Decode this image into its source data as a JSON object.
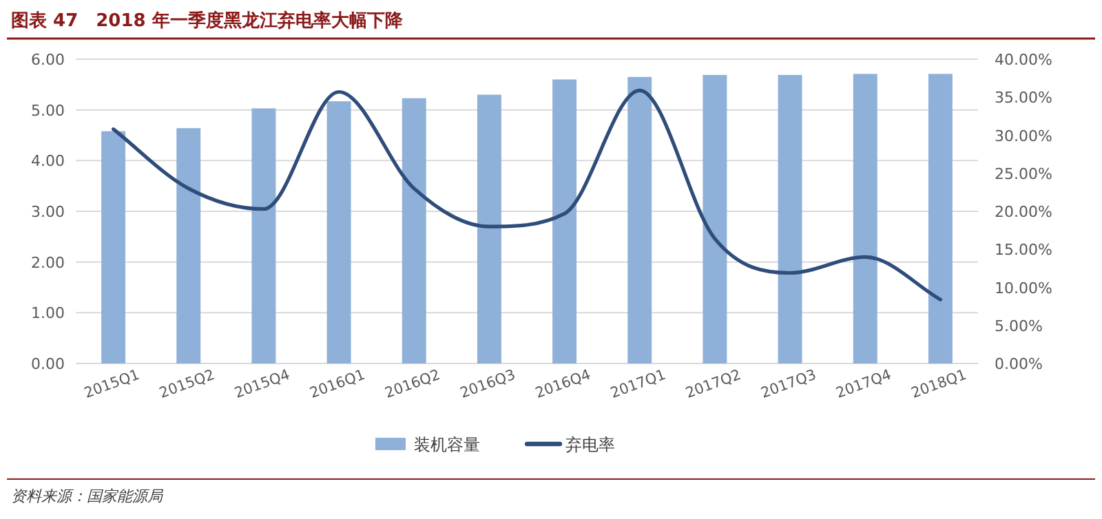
{
  "chart_data": {
    "type": "bar",
    "title": "图表 47　2018 年一季度黑龙江弃电率大幅下降",
    "categories": [
      "2015Q1",
      "2015Q2",
      "2015Q4",
      "2016Q1",
      "2016Q2",
      "2016Q3",
      "2016Q4",
      "2017Q1",
      "2017Q2",
      "2017Q3",
      "2017Q4",
      "2018Q1"
    ],
    "series": [
      {
        "name": "装机容量",
        "color": "#8eb0d9",
        "values": [
          4.58,
          4.64,
          5.03,
          5.17,
          5.23,
          5.3,
          5.6,
          5.65,
          5.69,
          5.69,
          5.71,
          5.71
        ]
      },
      {
        "name": "弃电率",
        "type": "line",
        "axis": "y2",
        "color": "#2f4d7a",
        "values": [
          30.8,
          23.0,
          20.3,
          35.7,
          23.0,
          18.0,
          19.7,
          35.9,
          16.4,
          11.9,
          14.0,
          8.4
        ]
      }
    ],
    "ylim": [
      0,
      6
    ],
    "yticks": [
      {
        "value": 0,
        "label": "0.00"
      },
      {
        "value": 1,
        "label": "1.00"
      },
      {
        "value": 2,
        "label": "2.00"
      },
      {
        "value": 3,
        "label": "3.00"
      },
      {
        "value": 4,
        "label": "4.00"
      },
      {
        "value": 5,
        "label": "5.00"
      },
      {
        "value": 6,
        "label": "6.00"
      }
    ],
    "y2lim": [
      0,
      40
    ],
    "y2ticks": [
      {
        "value": 0,
        "label": "0.00%"
      },
      {
        "value": 5,
        "label": "5.00%"
      },
      {
        "value": 10,
        "label": "10.00%"
      },
      {
        "value": 15,
        "label": "15.00%"
      },
      {
        "value": 20,
        "label": "20.00%"
      },
      {
        "value": 25,
        "label": "25.00%"
      },
      {
        "value": 30,
        "label": "30.00%"
      },
      {
        "value": 35,
        "label": "35.00%"
      },
      {
        "value": 40,
        "label": "40.00%"
      }
    ],
    "grid": "y",
    "legend": "bottom",
    "marker": "none",
    "line_style": "solid",
    "annotations": [
      "资料来源：国家能源局"
    ]
  }
}
